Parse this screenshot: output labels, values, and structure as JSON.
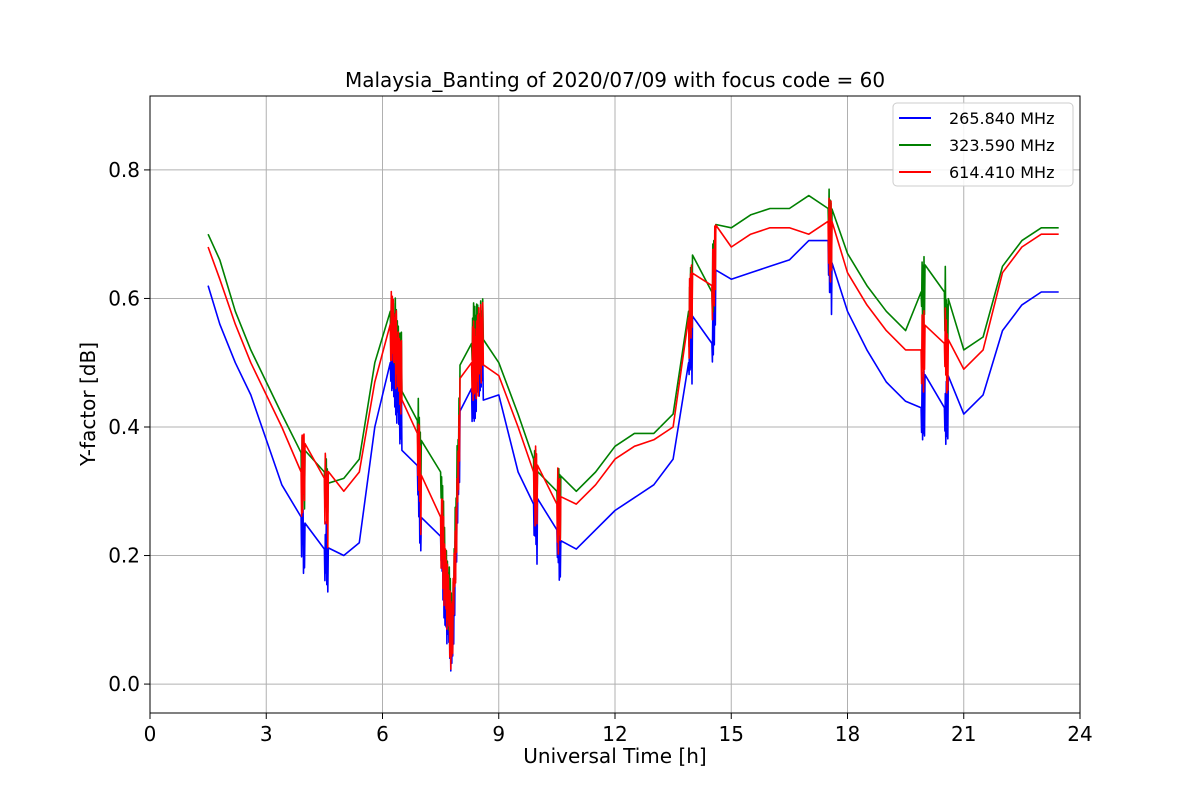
{
  "chart_data": {
    "type": "line",
    "title": "Malaysia_Banting of 2020/07/09 with focus code = 60",
    "xlabel": "Universal Time [h]",
    "ylabel": "Y-factor [dB]",
    "xlim": [
      0,
      24
    ],
    "ylim": [
      -0.045,
      0.915
    ],
    "xticks": [
      0,
      3,
      6,
      9,
      12,
      15,
      18,
      21,
      24
    ],
    "xtick_labels": [
      "0",
      "3",
      "6",
      "9",
      "12",
      "15",
      "18",
      "21",
      "24"
    ],
    "yticks": [
      0.0,
      0.2,
      0.4,
      0.6,
      0.8
    ],
    "ytick_labels": [
      "0.0",
      "0.2",
      "0.4",
      "0.6",
      "0.8"
    ],
    "grid": true,
    "legend_position": "top-right",
    "series": [
      {
        "name": "265.840 MHz",
        "color": "#0000ff",
        "amplitude": 0.06,
        "x": [
          1.5,
          1.8,
          2.2,
          2.6,
          3.0,
          3.4,
          3.9,
          4.0,
          4.5,
          4.6,
          5.0,
          5.4,
          5.8,
          6.2,
          6.5,
          6.9,
          7.0,
          7.5,
          7.6,
          7.8,
          8.0,
          8.3,
          8.6,
          9.0,
          9.5,
          9.9,
          10.0,
          10.5,
          10.6,
          11.0,
          11.5,
          12.0,
          12.5,
          13.0,
          13.5,
          13.9,
          14.0,
          14.5,
          14.6,
          15.0,
          15.5,
          16.0,
          16.5,
          17.0,
          17.5,
          17.6,
          18.0,
          18.5,
          19.0,
          19.5,
          19.9,
          20.0,
          20.5,
          20.6,
          21.0,
          21.5,
          22.0,
          22.5,
          23.0,
          23.45
        ],
        "y": [
          0.62,
          0.56,
          0.5,
          0.45,
          0.38,
          0.31,
          0.26,
          0.21,
          0.21,
          0.18,
          0.2,
          0.22,
          0.4,
          0.5,
          0.42,
          0.34,
          0.23,
          0.23,
          0.15,
          0.06,
          0.38,
          0.46,
          0.5,
          0.45,
          0.33,
          0.28,
          0.24,
          0.24,
          0.19,
          0.21,
          0.24,
          0.27,
          0.29,
          0.31,
          0.35,
          0.5,
          0.53,
          0.53,
          0.59,
          0.63,
          0.64,
          0.65,
          0.66,
          0.69,
          0.69,
          0.62,
          0.58,
          0.52,
          0.47,
          0.44,
          0.43,
          0.43,
          0.43,
          0.43,
          0.42,
          0.45,
          0.55,
          0.59,
          0.61,
          0.61
        ]
      },
      {
        "name": "323.590 MHz",
        "color": "#008000",
        "amplitude": 0.06,
        "x": [
          1.5,
          1.8,
          2.2,
          2.6,
          3.0,
          3.4,
          3.9,
          4.0,
          4.5,
          4.6,
          5.0,
          5.4,
          5.8,
          6.2,
          6.5,
          6.9,
          7.0,
          7.5,
          7.6,
          7.8,
          8.0,
          8.3,
          8.6,
          9.0,
          9.5,
          9.9,
          10.0,
          10.5,
          10.6,
          11.0,
          11.5,
          12.0,
          12.5,
          13.0,
          13.5,
          13.9,
          14.0,
          14.5,
          14.6,
          15.0,
          15.5,
          16.0,
          16.5,
          17.0,
          17.5,
          17.6,
          18.0,
          18.5,
          19.0,
          19.5,
          19.9,
          20.0,
          20.5,
          20.6,
          21.0,
          21.5,
          22.0,
          22.5,
          23.0,
          23.45
        ],
        "y": [
          0.7,
          0.66,
          0.58,
          0.52,
          0.47,
          0.42,
          0.36,
          0.32,
          0.33,
          0.29,
          0.32,
          0.35,
          0.5,
          0.58,
          0.5,
          0.41,
          0.33,
          0.33,
          0.2,
          0.08,
          0.45,
          0.53,
          0.56,
          0.5,
          0.42,
          0.35,
          0.3,
          0.3,
          0.27,
          0.3,
          0.33,
          0.37,
          0.39,
          0.39,
          0.42,
          0.58,
          0.61,
          0.61,
          0.68,
          0.71,
          0.73,
          0.74,
          0.74,
          0.76,
          0.74,
          0.7,
          0.67,
          0.62,
          0.58,
          0.55,
          0.61,
          0.61,
          0.61,
          0.54,
          0.52,
          0.54,
          0.65,
          0.69,
          0.71,
          0.71
        ]
      },
      {
        "name": "614.410 MHz",
        "color": "#ff0000",
        "amplitude": 0.07,
        "x": [
          1.5,
          1.8,
          2.2,
          2.6,
          3.0,
          3.4,
          3.9,
          4.0,
          4.5,
          4.6,
          5.0,
          5.4,
          5.8,
          6.2,
          6.5,
          6.9,
          7.0,
          7.5,
          7.6,
          7.8,
          8.0,
          8.3,
          8.6,
          9.0,
          9.5,
          9.9,
          10.0,
          10.5,
          10.6,
          11.0,
          11.5,
          12.0,
          12.5,
          13.0,
          13.5,
          13.9,
          14.0,
          14.5,
          14.6,
          15.0,
          15.5,
          16.0,
          16.5,
          17.0,
          17.5,
          17.6,
          18.0,
          18.5,
          19.0,
          19.5,
          19.9,
          20.0,
          20.5,
          20.6,
          21.0,
          21.5,
          22.0,
          22.5,
          23.0,
          23.45
        ],
        "y": [
          0.68,
          0.63,
          0.56,
          0.5,
          0.45,
          0.4,
          0.33,
          0.32,
          0.32,
          0.27,
          0.3,
          0.33,
          0.47,
          0.56,
          0.48,
          0.39,
          0.29,
          0.26,
          0.18,
          0.07,
          0.42,
          0.5,
          0.53,
          0.48,
          0.4,
          0.33,
          0.28,
          0.28,
          0.25,
          0.28,
          0.31,
          0.35,
          0.37,
          0.38,
          0.4,
          0.57,
          0.6,
          0.62,
          0.65,
          0.68,
          0.7,
          0.71,
          0.71,
          0.7,
          0.72,
          0.67,
          0.64,
          0.59,
          0.55,
          0.52,
          0.52,
          0.52,
          0.53,
          0.5,
          0.49,
          0.52,
          0.64,
          0.68,
          0.7,
          0.7
        ]
      }
    ]
  }
}
